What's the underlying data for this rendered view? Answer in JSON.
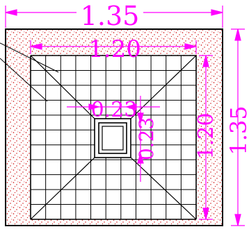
{
  "colors": {
    "background": "#ffffff",
    "line": "#000000",
    "dimension": "#ff00ff",
    "fill_dots": "#cc0000"
  },
  "dimensions": {
    "outer_width": "1.35",
    "inner_width": "1.20",
    "center_width": "0.23",
    "center_height": "0.23",
    "inner_height": "1.20",
    "outer_height": "1.35"
  },
  "grid": {
    "rows": 11,
    "cols": 11
  }
}
